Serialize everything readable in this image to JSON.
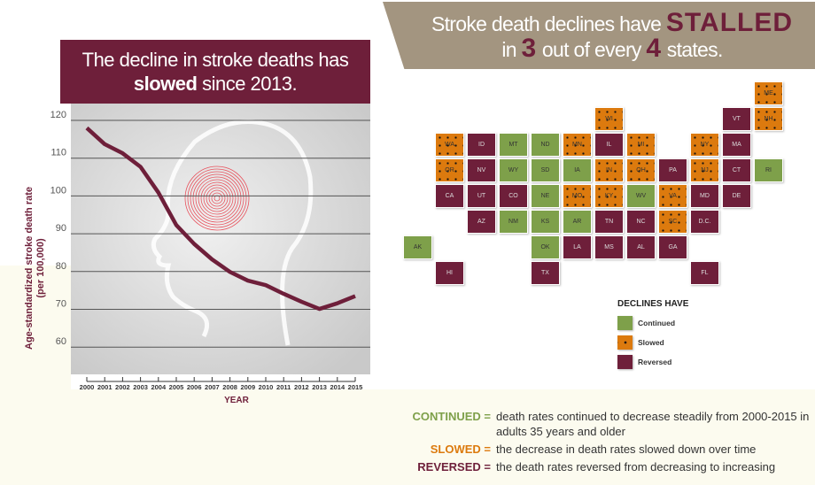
{
  "left_title": {
    "line1": "The decline in stroke deaths has",
    "bold": "slowed",
    "rest": " since 2013."
  },
  "right_title": {
    "p1": "Stroke death declines have ",
    "em1": "STALLED",
    "p2": "in ",
    "em2": "3",
    "p3": " out of every ",
    "em3": "4",
    "p4": " states."
  },
  "colors": {
    "maroon": "#6e1f3a",
    "continued": "#7ea04a",
    "slowed": "#dc7a0e",
    "reversed": "#6e1f3a",
    "banner": "#a39580"
  },
  "chart_data": {
    "type": "line",
    "title": "The decline in stroke deaths has slowed since 2013.",
    "xlabel": "YEAR",
    "ylabel": "Age-standardized stroke death rate",
    "ylabel_unit": "(per 100,000)",
    "x": [
      "2000",
      "2001",
      "2002",
      "2003",
      "2004",
      "2005",
      "2006",
      "2007",
      "2008",
      "2009",
      "2010",
      "2011",
      "2012",
      "2013",
      "2014",
      "2015"
    ],
    "values": [
      118.0,
      113.7,
      111.3,
      107.7,
      100.9,
      92.3,
      87.3,
      83.2,
      79.9,
      77.6,
      76.4,
      74.1,
      72.0,
      70.1,
      71.6,
      73.5
    ],
    "yticks": [
      60,
      70,
      80,
      90,
      100,
      110,
      120
    ],
    "ylim": [
      53,
      124
    ],
    "grid": true,
    "line_color": "#6e1f3a"
  },
  "map": {
    "legend_title": "DECLINES HAVE",
    "legend": [
      {
        "key": "continued",
        "label": "Continued"
      },
      {
        "key": "slowed",
        "label": "Slowed"
      },
      {
        "key": "reversed",
        "label": "Reversed"
      }
    ],
    "states": {
      "AK": "continued",
      "WA": "slowed",
      "OR": "slowed",
      "CA": "reversed",
      "ID": "reversed",
      "NV": "reversed",
      "UT": "reversed",
      "AZ": "reversed",
      "MT": "continued",
      "WY": "continued",
      "CO": "reversed",
      "NM": "continued",
      "ND": "continued",
      "SD": "continued",
      "NE": "continued",
      "KS": "continued",
      "OK": "continued",
      "TX": "reversed",
      "MN": "slowed",
      "IA": "continued",
      "MO": "slowed",
      "AR": "continued",
      "LA": "reversed",
      "WI": "slowed",
      "IL": "reversed",
      "MI": "slowed",
      "IN": "slowed",
      "OH": "slowed",
      "KY": "slowed",
      "TN": "reversed",
      "MS": "reversed",
      "AL": "reversed",
      "GA": "reversed",
      "FL": "reversed",
      "SC": "slowed",
      "NC": "reversed",
      "VA": "slowed",
      "WV": "continued",
      "PA": "reversed",
      "NY": "slowed",
      "VT": "reversed",
      "NH": "slowed",
      "ME": "slowed",
      "MA": "reversed",
      "CT": "reversed",
      "RI": "continued",
      "NJ": "slowed",
      "DE": "reversed",
      "MD": "reversed",
      "DC": "reversed",
      "HI": "reversed"
    },
    "dc_label": "D.C."
  },
  "definitions": [
    {
      "key": "CONTINUED =",
      "text": "death rates continued to decrease steadily from 2000-2015 in adults 35 years and older",
      "color": "#7ea04a"
    },
    {
      "key": "SLOWED =",
      "text": "the decrease in death rates slowed down over time",
      "color": "#dc7a0e"
    },
    {
      "key": "REVERSED =",
      "text": "the death rates reversed from decreasing to increasing",
      "color": "#6e1f3a"
    }
  ]
}
